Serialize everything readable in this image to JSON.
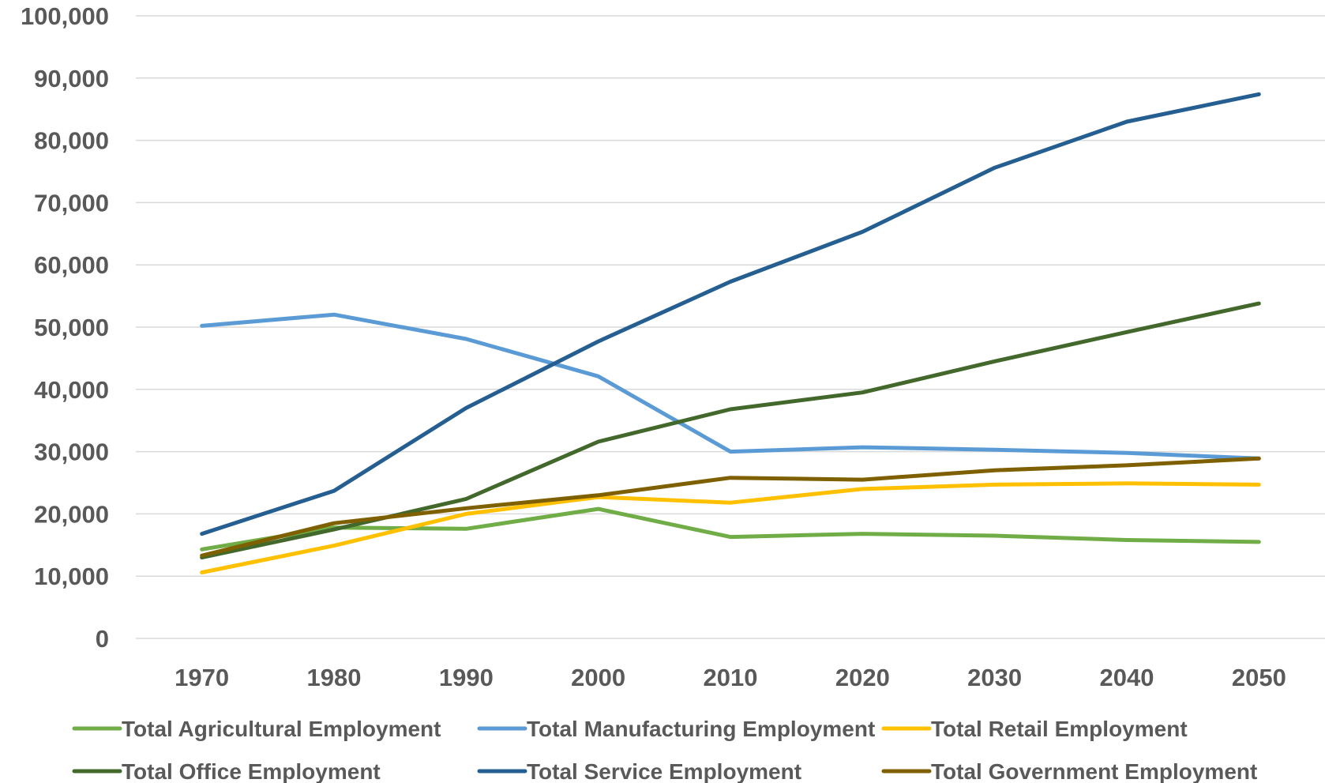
{
  "chart_data": {
    "type": "line",
    "title": "",
    "xlabel": "",
    "ylabel": "",
    "x": [
      1970,
      1980,
      1990,
      2000,
      2010,
      2020,
      2030,
      2040,
      2050
    ],
    "x_tick_labels": [
      "1970",
      "1980",
      "1990",
      "2000",
      "2010",
      "2020",
      "2030",
      "2040",
      "2050"
    ],
    "ylim": [
      0,
      100000
    ],
    "y_ticks": [
      0,
      10000,
      20000,
      30000,
      40000,
      50000,
      60000,
      70000,
      80000,
      90000,
      100000
    ],
    "y_tick_labels": [
      "0",
      "10,000",
      "20,000",
      "30,000",
      "40,000",
      "50,000",
      "60,000",
      "70,000",
      "80,000",
      "90,000",
      "100,000"
    ],
    "grid": "horizontal",
    "legend_position": "bottom",
    "series": [
      {
        "name": "Total Agricultural Employment",
        "color": "#70AD47",
        "values": [
          14300,
          17800,
          17600,
          20800,
          16300,
          16800,
          16500,
          15800,
          15500
        ]
      },
      {
        "name": "Total Manufacturing Employment",
        "color": "#5B9BD5",
        "values": [
          50200,
          52000,
          48100,
          42100,
          30000,
          30700,
          30300,
          29800,
          28900
        ]
      },
      {
        "name": "Total Retail Employment",
        "color": "#FFC000",
        "values": [
          10600,
          14900,
          20000,
          22700,
          21800,
          24000,
          24700,
          24900,
          24700
        ]
      },
      {
        "name": "Total Office Employment",
        "color": "#43682B",
        "values": [
          13000,
          17500,
          22400,
          31600,
          36800,
          39500,
          44500,
          49200,
          53800
        ]
      },
      {
        "name": "Total Service Employment",
        "color": "#255E91",
        "values": [
          16800,
          23700,
          37000,
          47700,
          57300,
          65300,
          75600,
          83000,
          87400
        ]
      },
      {
        "name": "Total Government Employment",
        "color": "#7F6000",
        "values": [
          13300,
          18500,
          20900,
          23000,
          25800,
          25500,
          27000,
          27800,
          28900
        ]
      }
    ]
  }
}
